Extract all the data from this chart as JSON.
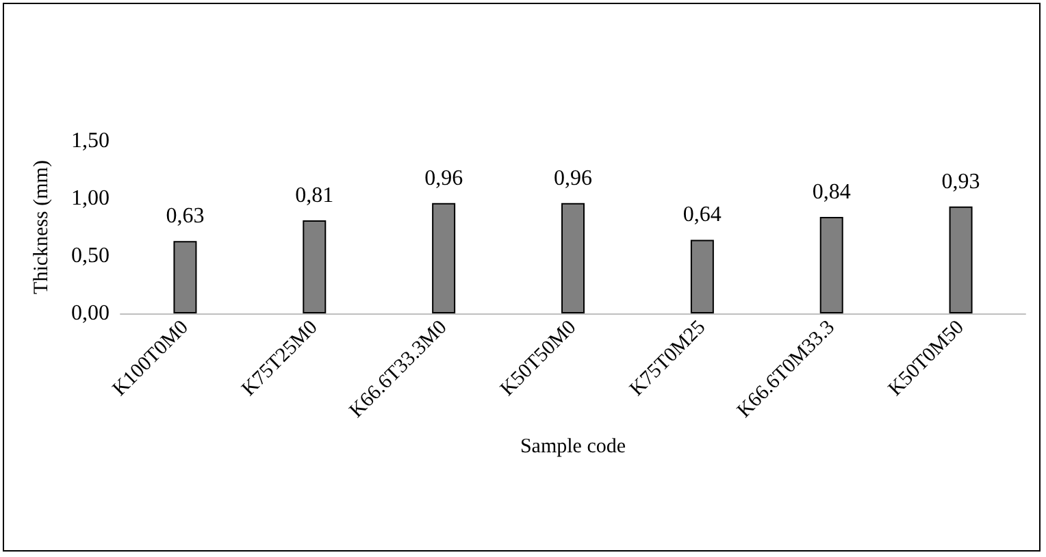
{
  "chart_data": {
    "type": "bar",
    "xlabel": "Sample code",
    "ylabel": "Thickness (mm)",
    "categories": [
      "K100T0M0",
      "K75T25M0",
      "K66.6T33.3M0",
      "K50T50M0",
      "K75T0M25",
      "K66.6T0M33.3",
      "K50T0M50"
    ],
    "values": [
      0.63,
      0.81,
      0.96,
      0.96,
      0.64,
      0.84,
      0.93
    ],
    "value_labels": [
      "0,63",
      "0,81",
      "0,96",
      "0,96",
      "0,64",
      "0,84",
      "0,93"
    ],
    "color": "#808080",
    "ylim": [
      0,
      1.5
    ],
    "yticks": [
      {
        "value": 0,
        "label": "0,00"
      },
      {
        "value": 0.5,
        "label": "0,50"
      },
      {
        "value": 1,
        "label": "1,00"
      },
      {
        "value": 1.5,
        "label": "1,50"
      }
    ],
    "grid": false
  }
}
